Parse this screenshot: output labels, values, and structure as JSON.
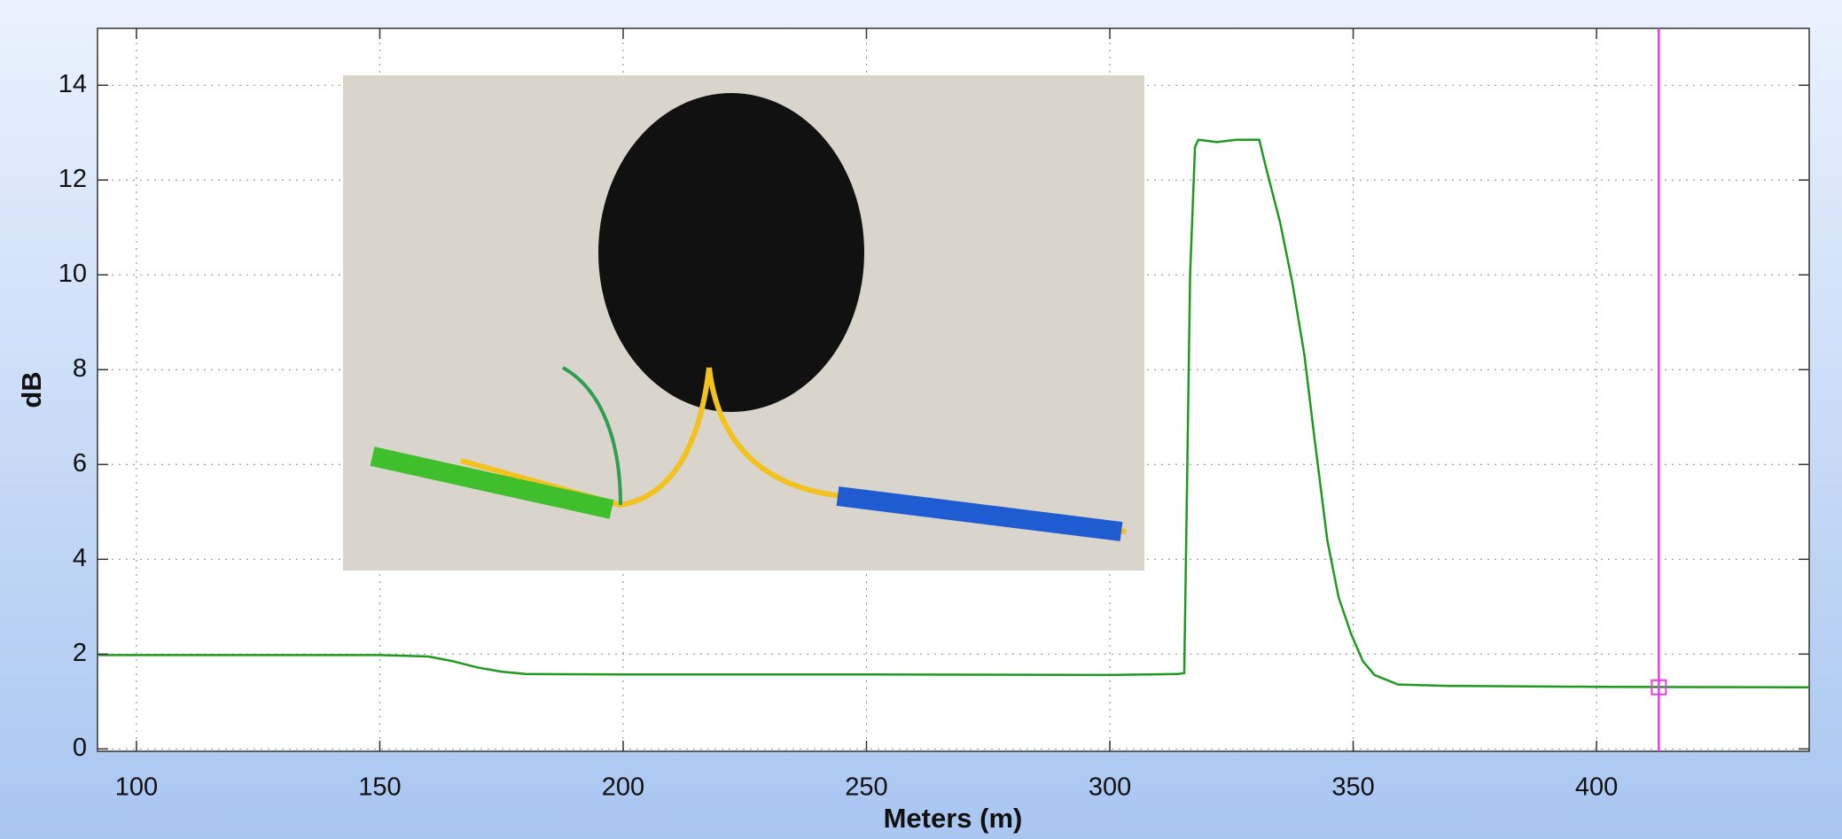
{
  "chart_data": {
    "type": "line",
    "xlabel": "Meters (m)",
    "ylabel": "dB",
    "x": [
      92,
      150,
      160,
      165,
      170,
      175,
      180,
      200,
      250,
      300,
      314,
      315.3,
      316.5,
      317.5,
      318.2,
      322,
      326,
      330.7,
      332,
      335,
      337.5,
      340,
      342,
      344.7,
      347,
      349.6,
      352,
      354.4,
      359.2,
      370,
      400,
      443.7
    ],
    "values": [
      1.98,
      1.98,
      1.95,
      1.85,
      1.72,
      1.63,
      1.58,
      1.57,
      1.57,
      1.56,
      1.58,
      1.6,
      10,
      12.7,
      12.85,
      12.8,
      12.85,
      12.85,
      12.3,
      11.1,
      9.84,
      8.3,
      6.6,
      4.4,
      3.2,
      2.42,
      1.85,
      1.56,
      1.36,
      1.33,
      1.31,
      1.3
    ],
    "color": "#1e9a1e",
    "xlim": [
      92,
      443.7
    ],
    "ylim": [
      -0.05,
      15.2
    ],
    "xticks": [
      100,
      150,
      200,
      250,
      300,
      350,
      400
    ],
    "yticks": [
      0,
      2,
      4,
      6,
      8,
      10,
      12,
      14
    ],
    "grid": true,
    "cursor": {
      "x": 412.8,
      "y": 1.3,
      "color": "#e83be8"
    }
  }
}
